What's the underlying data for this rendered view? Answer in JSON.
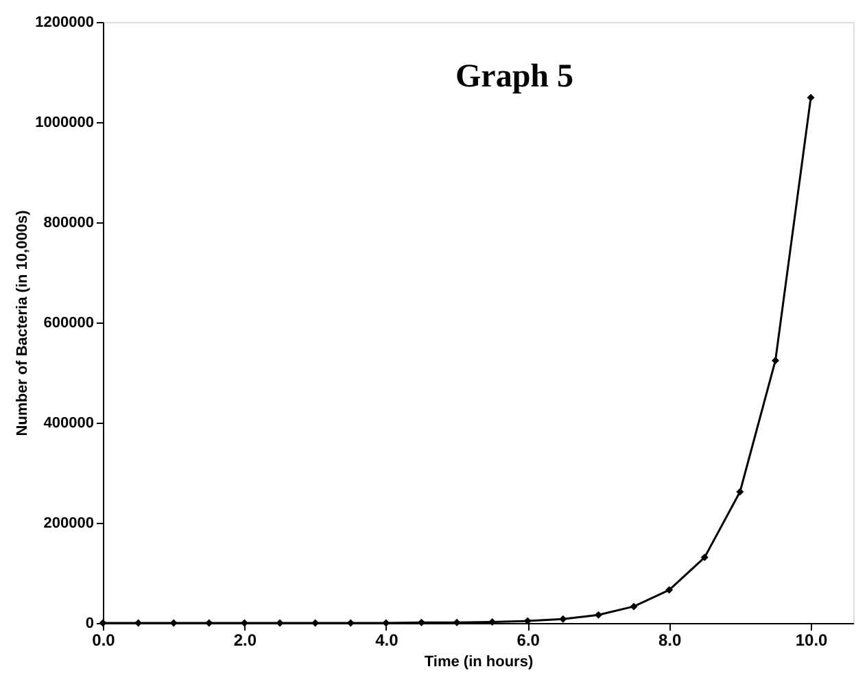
{
  "chart_data": {
    "type": "line",
    "title": "Graph 5",
    "xlabel": "Time (in hours)",
    "ylabel": "Number of Bacteria (in 10,000s)",
    "x": [
      0,
      0.5,
      1,
      1.5,
      2,
      2.5,
      3,
      3.5,
      4,
      4.5,
      5,
      5.5,
      6,
      6.5,
      7,
      7.5,
      8,
      8.5,
      9,
      9.5,
      10
    ],
    "series": [
      {
        "color": "#000000",
        "values": [
          0,
          0,
          0,
          0,
          0,
          0,
          0,
          0,
          0,
          1000,
          1000,
          2000,
          4000,
          8000,
          16000,
          33000,
          66000,
          131000,
          262000,
          524000,
          1049000
        ]
      }
    ],
    "xlim": [
      0,
      10.6
    ],
    "xticks": [
      {
        "value": 0,
        "label": "0.0"
      },
      {
        "value": 2,
        "label": "2.0"
      },
      {
        "value": 4,
        "label": "4.0"
      },
      {
        "value": 6,
        "label": "6.0"
      },
      {
        "value": 8,
        "label": "8.0"
      },
      {
        "value": 10,
        "label": "10.0"
      }
    ],
    "ylim": [
      0,
      1200000
    ],
    "yticks": [
      0,
      200000,
      400000,
      600000,
      800000,
      1000000,
      1200000
    ],
    "grid": false,
    "marker": "diamond",
    "line_style": "solid"
  }
}
